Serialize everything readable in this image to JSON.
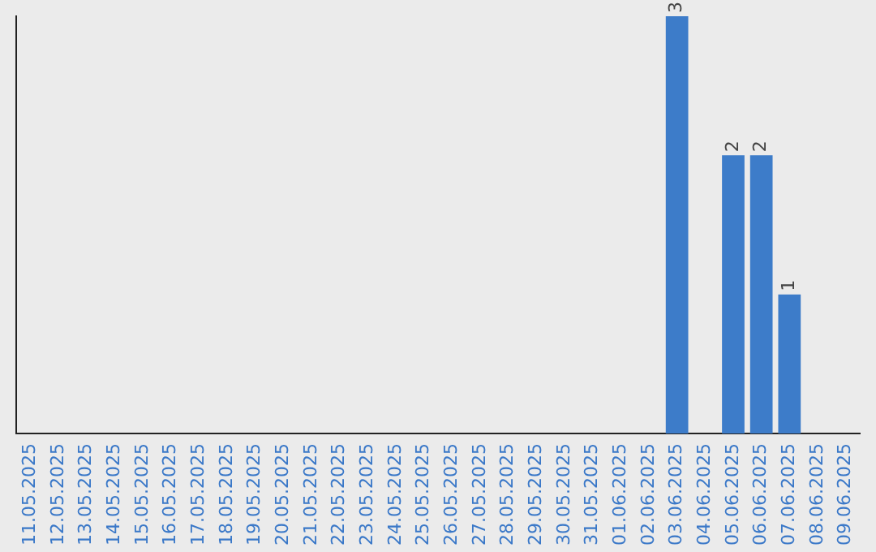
{
  "chart_data": {
    "type": "bar",
    "categories": [
      "11.05.2025",
      "12.05.2025",
      "13.05.2025",
      "14.05.2025",
      "15.05.2025",
      "16.05.2025",
      "17.05.2025",
      "18.05.2025",
      "19.05.2025",
      "20.05.2025",
      "21.05.2025",
      "22.05.2025",
      "23.05.2025",
      "24.05.2025",
      "25.05.2025",
      "26.05.2025",
      "27.05.2025",
      "28.05.2025",
      "29.05.2025",
      "30.05.2025",
      "31.05.2025",
      "01.06.2025",
      "02.06.2025",
      "03.06.2025",
      "04.06.2025",
      "05.06.2025",
      "06.06.2025",
      "07.06.2025",
      "08.06.2025",
      "09.06.2025"
    ],
    "values": [
      null,
      null,
      null,
      null,
      null,
      null,
      null,
      null,
      null,
      null,
      null,
      null,
      null,
      null,
      null,
      null,
      null,
      null,
      null,
      null,
      null,
      null,
      null,
      3,
      null,
      2,
      2,
      1,
      null,
      null
    ],
    "data_labels": true,
    "color": "#3d7cc9",
    "grid": false,
    "legend": false,
    "tick_labels": "x"
  }
}
